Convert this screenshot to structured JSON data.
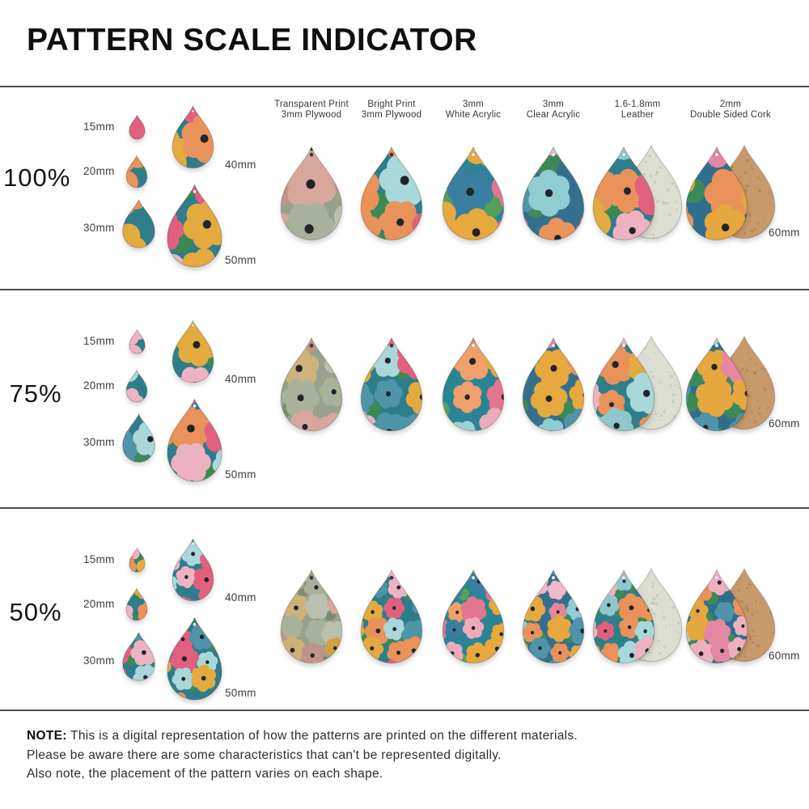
{
  "title": "PATTERN SCALE INDICATOR",
  "rows": [
    {
      "scale_label": "100%",
      "scale_value": 100,
      "pattern_scale": 1.0
    },
    {
      "scale_label": "75%",
      "scale_value": 75,
      "pattern_scale": 0.75
    },
    {
      "scale_label": "50%",
      "scale_value": 50,
      "pattern_scale": 0.5
    }
  ],
  "sizes": [
    {
      "label": "15mm",
      "mm": 15
    },
    {
      "label": "20mm",
      "mm": 20
    },
    {
      "label": "30mm",
      "mm": 30
    },
    {
      "label": "40mm",
      "mm": 40
    },
    {
      "label": "50mm",
      "mm": 50
    }
  ],
  "main_size": {
    "label": "60mm",
    "mm": 60
  },
  "materials": [
    {
      "name": "transparent-print-plywood",
      "label1": "Transparent Print",
      "label2": "3mm Plywood",
      "hole": "dark",
      "base": "#97a18c",
      "accent": "#7c8a6e",
      "petals": [
        "#d8a79c",
        "#d4a044",
        "#b9c0ae",
        "#c2938a",
        "#a8b29b",
        "#cdb27a"
      ]
    },
    {
      "name": "bright-print-plywood",
      "label1": "Bright Print",
      "label2": "3mm Plywood",
      "hole": "dark",
      "base": "#2e7d8a",
      "accent": "#3e8a52",
      "petals": [
        "#e2607f",
        "#a9d8da",
        "#e9925a",
        "#eeb3c2",
        "#e3aa3f",
        "#4f94a8"
      ]
    },
    {
      "name": "white-acrylic",
      "label1": "3mm",
      "label2": "White Acrylic",
      "hole": "light",
      "base": "#2b8494",
      "accent": "#57a05a",
      "petals": [
        "#e7a93e",
        "#efa06b",
        "#edaabb",
        "#9fd2d6",
        "#e2758f",
        "#3a7fa0"
      ]
    },
    {
      "name": "clear-acrylic",
      "label1": "3mm",
      "label2": "Clear Acrylic",
      "hole": "light",
      "base": "#356f8e",
      "accent": "#3f8a55",
      "petals": [
        "#eebac7",
        "#e7a93e",
        "#8fcdd3",
        "#e2869e",
        "#4f94a8",
        "#e9925a"
      ]
    },
    {
      "name": "leather",
      "label1": "1.6-1.8mm",
      "label2": "Leather",
      "hole": "light",
      "base": "#2f7e8b",
      "accent": "#3e8a52",
      "petals": [
        "#e2607f",
        "#a9d8da",
        "#e9925a",
        "#eeb3c2",
        "#e3aa3f",
        "#8fc7cd"
      ],
      "back": "#dcded2",
      "back_speckle": "#b4b8a8"
    },
    {
      "name": "double-sided-cork",
      "label1": "2mm",
      "label2": "Double Sided Cork",
      "hole": "light",
      "base": "#2f6f8d",
      "accent": "#3f8a55",
      "petals": [
        "#eeb0c0",
        "#e586a2",
        "#e5a83e",
        "#a9d4d8",
        "#4f94a8",
        "#e9925a"
      ],
      "back": "#c8996a",
      "back_speckle": "#a87b4e"
    }
  ],
  "sample_palette": {
    "base": "#2e7d8a",
    "accent": "#3e8a52",
    "petals": [
      "#a9d8da",
      "#e2607f",
      "#e9925a",
      "#eeb3c2",
      "#e3aa3f",
      "#4f94a8"
    ]
  },
  "note": {
    "label": "NOTE:",
    "line1": "This is a digital representation of how the patterns are printed on the different materials.",
    "line2": "Please be aware there are some characteristics that can't be represented digitally.",
    "line3": "Also note, the placement of the pattern varies on each shape."
  },
  "ui_colors": {
    "background": "#ffffff",
    "divider": "#4e4e4e",
    "title_text": "#101010",
    "label_text": "#3d3d3d",
    "header_text": "#383838",
    "note_text": "#2e2e2e"
  }
}
